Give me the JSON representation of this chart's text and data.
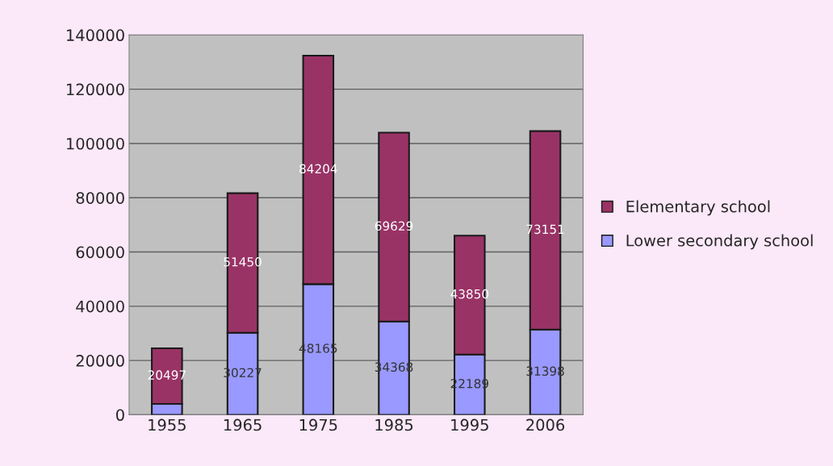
{
  "chart_data": {
    "type": "bar",
    "stacked": true,
    "categories": [
      "1955",
      "1965",
      "1975",
      "1985",
      "1995",
      "2006"
    ],
    "series": [
      {
        "name": "Lower secondary school",
        "color": "#9999ff",
        "values": [
          4000,
          30227,
          48165,
          34368,
          22189,
          31398
        ],
        "value_labels": [
          null,
          "30227",
          "48165",
          "34368",
          "22189",
          "31398"
        ]
      },
      {
        "name": "Elementary school",
        "color": "#993366",
        "values": [
          20497,
          51450,
          84204,
          69629,
          43850,
          73151
        ],
        "value_labels": [
          "20497",
          "51450",
          "84204",
          "69629",
          "43850",
          "73151"
        ]
      }
    ],
    "ylim": [
      0,
      140000
    ],
    "yticks": [
      0,
      20000,
      40000,
      60000,
      80000,
      100000,
      120000,
      140000
    ],
    "grid": "y",
    "legend": "right"
  }
}
